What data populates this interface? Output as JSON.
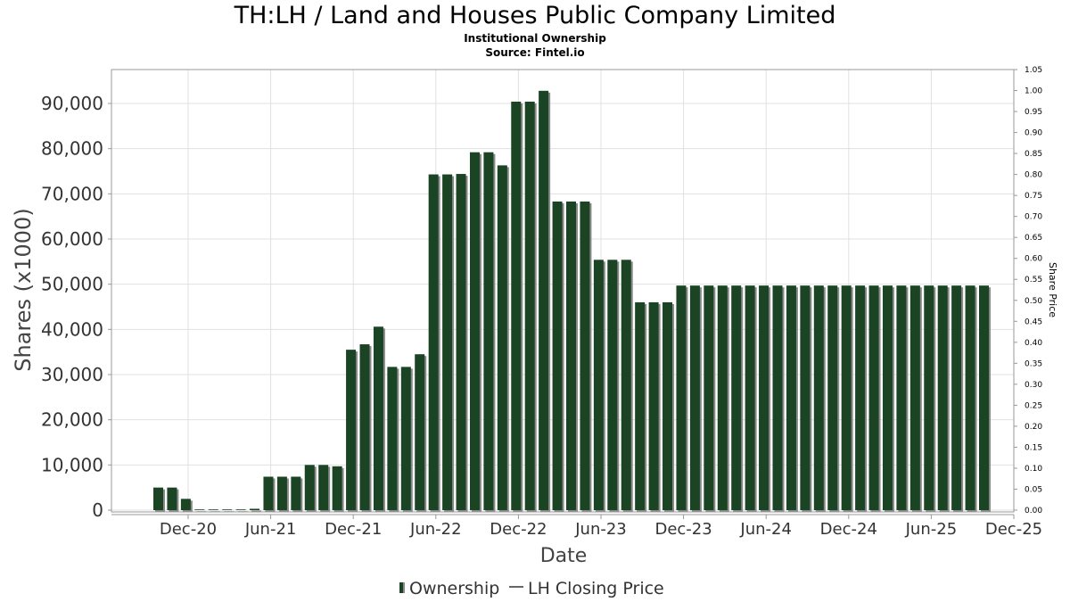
{
  "title": "TH:LH / Land and Houses Public Company Limited",
  "subtitle": "Institutional Ownership",
  "source": "Source: Fintel.io",
  "legend": {
    "ownership": "Ownership",
    "price": "LH Closing Price"
  },
  "colors": {
    "bar": "#1b4424",
    "bar_shadow": "#8a8a8a",
    "grid": "#e0e0e0"
  },
  "chart_data": {
    "type": "bar",
    "xlabel": "Date",
    "ylabel": "Shares (x1000)",
    "y2label": "Share Price",
    "ylim": [
      0,
      97500
    ],
    "y2lim": [
      0,
      1.05
    ],
    "grid": true,
    "legend_position": "bottom",
    "y_ticks": [
      "0",
      "10,000",
      "20,000",
      "30,000",
      "40,000",
      "50,000",
      "60,000",
      "70,000",
      "80,000",
      "90,000"
    ],
    "y2_ticks": [
      "0.00",
      "0.05",
      "0.10",
      "0.15",
      "0.20",
      "0.25",
      "0.30",
      "0.35",
      "0.40",
      "0.45",
      "0.50",
      "0.55",
      "0.60",
      "0.65",
      "0.70",
      "0.75",
      "0.80",
      "0.85",
      "0.90",
      "0.95",
      "1.00",
      "1.05"
    ],
    "x_ticks": [
      "Dec-20",
      "Jun-21",
      "Dec-21",
      "Jun-22",
      "Dec-22",
      "Jun-23",
      "Dec-23",
      "Jun-24",
      "Dec-24",
      "Jun-25",
      "Dec-25"
    ],
    "series": [
      {
        "name": "Ownership",
        "values": [
          5000,
          5000,
          2500,
          100,
          100,
          100,
          100,
          300,
          7400,
          7400,
          7400,
          10000,
          10000,
          9700,
          35500,
          36700,
          40600,
          31700,
          31700,
          34500,
          74300,
          74300,
          74400,
          79200,
          79200,
          76300,
          90400,
          90400,
          92800,
          68300,
          68300,
          68300,
          55400,
          55400,
          55400,
          46000,
          46000,
          46000,
          49700,
          49700,
          49700,
          49700,
          49700,
          49700,
          49700,
          49700,
          49700,
          49700,
          49700,
          49700,
          49700,
          49700,
          49700,
          49700,
          49700,
          49700,
          49700,
          49700,
          49700,
          49700,
          49700
        ]
      },
      {
        "name": "LH Closing Price",
        "values": []
      }
    ]
  }
}
